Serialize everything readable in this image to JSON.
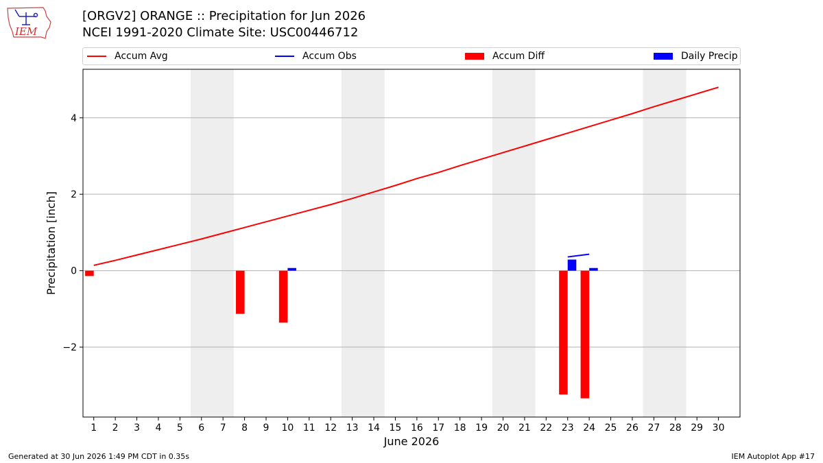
{
  "header": {
    "title_line1": "[ORGV2] ORANGE :: Precipitation for Jun 2026",
    "title_line2": "NCEI 1991-2020 Climate Site: USC00446712"
  },
  "logo": {
    "text": "IEM"
  },
  "legend": {
    "accum_avg": "Accum Avg",
    "accum_obs": "Accum Obs",
    "accum_diff": "Accum Diff",
    "daily_precip": "Daily Precip"
  },
  "footer": {
    "generated": "Generated at 30 Jun 2026 1:49 PM CDT in 0.35s",
    "app": "IEM Autoplot App #17"
  },
  "chart_data": {
    "type": "bar",
    "xlabel": "June 2026",
    "ylabel": "Precipitation [inch]",
    "xlim": [
      0.5,
      31.0
    ],
    "ylim": [
      -3.83,
      5.27
    ],
    "x_ticks": [
      1,
      2,
      3,
      4,
      5,
      6,
      7,
      8,
      9,
      10,
      11,
      12,
      13,
      14,
      15,
      16,
      17,
      18,
      19,
      20,
      21,
      22,
      23,
      24,
      25,
      26,
      27,
      28,
      29,
      30
    ],
    "y_ticks": [
      -2,
      0,
      2,
      4
    ],
    "y_tick_labels": [
      "−2",
      "0",
      "2",
      "4"
    ],
    "grid": "y",
    "legend_position": "top",
    "weekend_shading": [
      [
        5.5,
        7.5
      ],
      [
        12.5,
        14.5
      ],
      [
        19.5,
        21.5
      ],
      [
        26.5,
        28.5
      ]
    ],
    "colors": {
      "accum_avg": "#ff0000",
      "accum_obs": "#0000ff",
      "accum_diff": "#ff0000",
      "daily_precip": "#0000ff",
      "shade": "#eeeeee",
      "grid": "#b0b0b0"
    },
    "accum_avg": {
      "x": [
        1,
        2,
        3,
        4,
        5,
        6,
        7,
        8,
        9,
        10,
        11,
        12,
        13,
        14,
        15,
        16,
        17,
        18,
        19,
        20,
        21,
        22,
        23,
        24,
        25,
        26,
        27,
        28,
        29,
        30
      ],
      "y": [
        0.14,
        0.27,
        0.41,
        0.55,
        0.69,
        0.83,
        0.98,
        1.13,
        1.28,
        1.43,
        1.58,
        1.73,
        1.89,
        2.06,
        2.23,
        2.41,
        2.57,
        2.75,
        2.92,
        3.09,
        3.26,
        3.43,
        3.6,
        3.77,
        3.94,
        4.11,
        4.29,
        4.46,
        4.63,
        4.8
      ]
    },
    "accum_obs": {
      "x": [
        23,
        24
      ],
      "y": [
        0.36,
        0.43
      ]
    },
    "accum_diff": {
      "x": [
        1,
        8,
        10,
        23,
        24
      ],
      "y": [
        -0.14,
        -1.13,
        -1.36,
        -3.24,
        -3.34
      ]
    },
    "daily_precip": {
      "x": [
        10,
        23,
        24
      ],
      "y": [
        0.07,
        0.29,
        0.07
      ]
    }
  }
}
